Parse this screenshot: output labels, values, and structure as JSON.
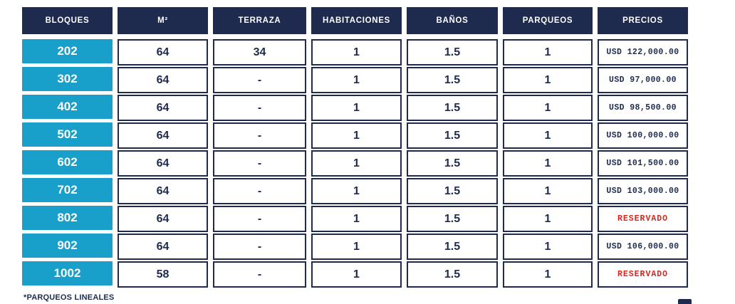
{
  "colors": {
    "navy": "#1e2b4e",
    "cyan": "#189fca",
    "reserved_red": "#d6271e",
    "background": "#ffffff"
  },
  "table": {
    "columns": [
      {
        "key": "bloque",
        "label": "BLOQUES"
      },
      {
        "key": "m2",
        "label": "M²"
      },
      {
        "key": "terraza",
        "label": "TERRAZA"
      },
      {
        "key": "habitaciones",
        "label": "HABITACIONES"
      },
      {
        "key": "banos",
        "label": "BAÑOS"
      },
      {
        "key": "parqueos",
        "label": "PARQUEOS"
      },
      {
        "key": "precio",
        "label": "PRECIOS"
      }
    ],
    "rows": [
      {
        "bloque": "202",
        "m2": "64",
        "terraza": "34",
        "habitaciones": "1",
        "banos": "1.5",
        "parqueos": "1",
        "precio": "USD 122,000.00",
        "reserved": false
      },
      {
        "bloque": "302",
        "m2": "64",
        "terraza": "-",
        "habitaciones": "1",
        "banos": "1.5",
        "parqueos": "1",
        "precio": "USD 97,000.00",
        "reserved": false
      },
      {
        "bloque": "402",
        "m2": "64",
        "terraza": "-",
        "habitaciones": "1",
        "banos": "1.5",
        "parqueos": "1",
        "precio": "USD 98,500.00",
        "reserved": false
      },
      {
        "bloque": "502",
        "m2": "64",
        "terraza": "-",
        "habitaciones": "1",
        "banos": "1.5",
        "parqueos": "1",
        "precio": "USD 100,000.00",
        "reserved": false
      },
      {
        "bloque": "602",
        "m2": "64",
        "terraza": "-",
        "habitaciones": "1",
        "banos": "1.5",
        "parqueos": "1",
        "precio": "USD 101,500.00",
        "reserved": false
      },
      {
        "bloque": "702",
        "m2": "64",
        "terraza": "-",
        "habitaciones": "1",
        "banos": "1.5",
        "parqueos": "1",
        "precio": "USD 103,000.00",
        "reserved": false
      },
      {
        "bloque": "802",
        "m2": "64",
        "terraza": "-",
        "habitaciones": "1",
        "banos": "1.5",
        "parqueos": "1",
        "precio": "RESERVADO",
        "reserved": true
      },
      {
        "bloque": "902",
        "m2": "64",
        "terraza": "-",
        "habitaciones": "1",
        "banos": "1.5",
        "parqueos": "1",
        "precio": "USD 106,000.00",
        "reserved": false
      },
      {
        "bloque": "1002",
        "m2": "58",
        "terraza": "-",
        "habitaciones": "1",
        "banos": "1.5",
        "parqueos": "1",
        "precio": "RESERVADO",
        "reserved": true
      }
    ]
  },
  "footnote": "*PARQUEOS LINEALES"
}
